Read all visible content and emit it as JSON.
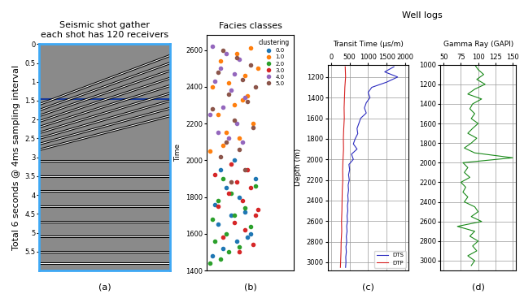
{
  "chart_data": [
    {
      "type": "image",
      "title": "Seismic shot gather\neach shot has 120 receivers",
      "y_label": "Total 6 seconds @ 4ms sampling interval",
      "label": "(a)",
      "xlim": [
        0,
        120
      ],
      "ylim": [
        6,
        0
      ],
      "yticks": [
        0,
        0.5,
        1,
        1.5,
        2,
        2.5,
        3,
        3.5,
        4,
        4.5,
        5,
        5.5
      ],
      "tick_labels": "y",
      "grid": false,
      "box": {
        "t": [
          1.45,
          3.5
        ]
      },
      "events": [
        {
          "x": [
            0,
            120
          ],
          "t": [
            1.6,
            0.3
          ]
        },
        {
          "x": [
            0,
            120
          ],
          "t": [
            1.75,
            0.5
          ]
        },
        {
          "x": [
            0,
            120
          ],
          "t": [
            1.9,
            0.7
          ]
        },
        {
          "x": [
            0,
            120
          ],
          "t": [
            2.05,
            0.9
          ]
        },
        {
          "x": [
            0,
            120
          ],
          "t": [
            2.2,
            1.1
          ]
        },
        {
          "x": [
            0,
            120
          ],
          "t": [
            2.35,
            1.3
          ]
        },
        {
          "x": [
            0,
            120
          ],
          "t": [
            2.5,
            1.5
          ]
        },
        {
          "x": [
            0,
            120
          ],
          "t": [
            2.65,
            1.7
          ]
        },
        {
          "x": [
            0,
            120
          ],
          "t": [
            2.8,
            1.9
          ]
        },
        {
          "x": [
            0,
            120
          ],
          "t": [
            3.1,
            3.1
          ]
        },
        {
          "x": [
            0,
            120
          ],
          "t": [
            3.5,
            3.5
          ]
        },
        {
          "x": [
            0,
            120
          ],
          "t": [
            3.9,
            3.9
          ]
        },
        {
          "x": [
            0,
            120
          ],
          "t": [
            4.3,
            4.3
          ]
        },
        {
          "x": [
            0,
            120
          ],
          "t": [
            4.7,
            4.7
          ]
        },
        {
          "x": [
            0,
            120
          ],
          "t": [
            5.1,
            5.1
          ]
        },
        {
          "x": [
            0,
            120
          ],
          "t": [
            5.5,
            5.5
          ]
        },
        {
          "x": [
            0,
            120
          ],
          "t": [
            5.8,
            5.8
          ]
        }
      ]
    },
    {
      "type": "scatter",
      "title": "Facies classes",
      "y_label": "Time",
      "label": "(b)",
      "xlim": [
        0,
        1.6
      ],
      "ylim": [
        1400,
        2680
      ],
      "yticks": [
        1400,
        1600,
        1800,
        2000,
        2200,
        2400,
        2600
      ],
      "tick_labels": "y",
      "grid": false,
      "legend": "upper right",
      "legend_title": "clustering",
      "series": [
        {
          "name": "0.0",
          "color": "#1f77b4",
          "x": [
            0.1,
            0.3,
            0.55,
            0.8,
            0.2,
            0.45,
            0.7,
            0.15,
            0.6,
            0.35,
            0.9,
            0.25,
            0.5,
            0.75
          ],
          "y": [
            1480,
            1520,
            1560,
            1600,
            1650,
            1700,
            1720,
            1760,
            1800,
            1850,
            1900,
            1950,
            2000,
            1580
          ]
        },
        {
          "name": "1.0",
          "color": "#ff7f0e",
          "x": [
            0.05,
            0.3,
            0.6,
            0.85,
            0.2,
            0.5,
            0.75,
            0.1,
            0.4,
            0.7,
            0.95,
            0.25,
            0.55,
            0.8,
            0.35,
            0.65
          ],
          "y": [
            2050,
            2080,
            2120,
            2200,
            2250,
            2300,
            2350,
            2400,
            2420,
            2460,
            2500,
            2540,
            2580,
            2610,
            2150,
            2330
          ]
        },
        {
          "name": "2.0",
          "color": "#2ca02c",
          "x": [
            0.05,
            0.25,
            0.4,
            0.6,
            0.15,
            0.35,
            0.8,
            0.1,
            0.5,
            0.7,
            0.2,
            0.45,
            0.9,
            0.3
          ],
          "y": [
            1440,
            1460,
            1500,
            1530,
            1560,
            1600,
            1640,
            1680,
            1700,
            1740,
            1780,
            1820,
            1860,
            1900
          ]
        },
        {
          "name": "3.0",
          "color": "#d62728",
          "x": [
            0.6,
            0.85,
            0.3,
            0.7,
            0.5,
            0.9,
            0.2,
            0.65,
            0.4,
            0.8,
            0.55,
            0.15,
            0.75,
            0.45,
            0.95
          ],
          "y": [
            1500,
            1540,
            1580,
            1620,
            1660,
            1700,
            1750,
            1780,
            1820,
            1850,
            1880,
            1920,
            1950,
            1980,
            1730
          ]
        },
        {
          "name": "4.0",
          "color": "#9467bd",
          "x": [
            0.1,
            0.35,
            0.6,
            0.25,
            0.5,
            0.15,
            0.45,
            0.7,
            0.3,
            0.05,
            0.55,
            0.2,
            0.4,
            0.65
          ],
          "y": [
            2620,
            2580,
            2550,
            2500,
            2470,
            2430,
            2380,
            2340,
            2290,
            2250,
            2200,
            2150,
            2120,
            2100
          ]
        },
        {
          "name": "5.0",
          "color": "#8c564b",
          "x": [
            0.3,
            0.55,
            0.8,
            0.2,
            0.65,
            0.9,
            0.4,
            0.75,
            0.1,
            0.5,
            0.85,
            0.35,
            0.6,
            0.25,
            0.7,
            0.45
          ],
          "y": [
            2600,
            2560,
            2520,
            2480,
            2440,
            2400,
            2360,
            2320,
            2280,
            2220,
            2180,
            2100,
            2060,
            2020,
            1950,
            1880
          ]
        }
      ]
    },
    {
      "type": "line",
      "title": "Transit Time (µs/m)",
      "y_label": "Depth (m)",
      "label": "(c)",
      "xlim": [
        -100,
        2100
      ],
      "ylim": [
        3080,
        1080
      ],
      "xticks": [
        0,
        500,
        1000,
        1500,
        2000
      ],
      "yticks": [
        1200,
        1400,
        1600,
        1800,
        2000,
        2200,
        2400,
        2600,
        2800,
        3000
      ],
      "grid": true,
      "legend": "lower right",
      "series": [
        {
          "name": "DTS",
          "color": "#2b2bbf",
          "x": [
            1700,
            1450,
            1800,
            1500,
            1100,
            1000,
            1050,
            950,
            900,
            950,
            800,
            750,
            700,
            720,
            650,
            600,
            700,
            550,
            600,
            480,
            500,
            470,
            490,
            460,
            470,
            450,
            460,
            440,
            450,
            430,
            440,
            420,
            430,
            410,
            420,
            400,
            410,
            395,
            400,
            390
          ],
          "y": [
            1100,
            1150,
            1200,
            1250,
            1300,
            1350,
            1400,
            1450,
            1500,
            1550,
            1600,
            1650,
            1700,
            1750,
            1800,
            1850,
            1900,
            1950,
            2000,
            2050,
            2100,
            2150,
            2200,
            2250,
            2300,
            2350,
            2400,
            2450,
            2500,
            2550,
            2600,
            2650,
            2700,
            2750,
            2800,
            2850,
            2900,
            2950,
            3000,
            3050
          ]
        },
        {
          "name": "DTP",
          "color": "#d62020",
          "x": [
            380,
            390,
            370,
            360,
            350,
            355,
            340,
            330,
            335,
            320,
            310,
            315,
            300,
            295,
            290,
            280,
            285,
            270,
            265,
            260,
            255,
            250
          ],
          "y": [
            1100,
            1200,
            1300,
            1400,
            1500,
            1600,
            1700,
            1800,
            1900,
            2000,
            2100,
            2200,
            2300,
            2400,
            2500,
            2600,
            2700,
            2800,
            2900,
            2950,
            3000,
            3050
          ]
        }
      ]
    },
    {
      "type": "line",
      "title": "Gamma Ray (GAPI)",
      "label": "(d)",
      "xlim": [
        45,
        155
      ],
      "ylim": [
        3100,
        1000
      ],
      "xticks": [
        50,
        75,
        100,
        125,
        150
      ],
      "yticks": [
        1000,
        1200,
        1400,
        1600,
        1800,
        2000,
        2200,
        2400,
        2600,
        2800,
        3000
      ],
      "grid": true,
      "series": [
        {
          "color": "#1a8a1a",
          "x": [
            95,
            100,
            108,
            98,
            110,
            95,
            85,
            105,
            92,
            88,
            95,
            90,
            100,
            92,
            85,
            98,
            90,
            80,
            95,
            150,
            78,
            85,
            80,
            88,
            75,
            82,
            78,
            85,
            80,
            95,
            100,
            90,
            105,
            70,
            95,
            88,
            100,
            92,
            98,
            85,
            95,
            90
          ],
          "y": [
            1000,
            1050,
            1100,
            1150,
            1200,
            1250,
            1300,
            1350,
            1400,
            1450,
            1500,
            1550,
            1600,
            1650,
            1700,
            1750,
            1800,
            1850,
            1900,
            1950,
            2000,
            2050,
            2100,
            2150,
            2200,
            2250,
            2300,
            2350,
            2400,
            2450,
            2500,
            2550,
            2600,
            2650,
            2700,
            2750,
            2800,
            2850,
            2900,
            2950,
            3000,
            3050
          ]
        }
      ]
    }
  ],
  "group_title": "Well logs"
}
